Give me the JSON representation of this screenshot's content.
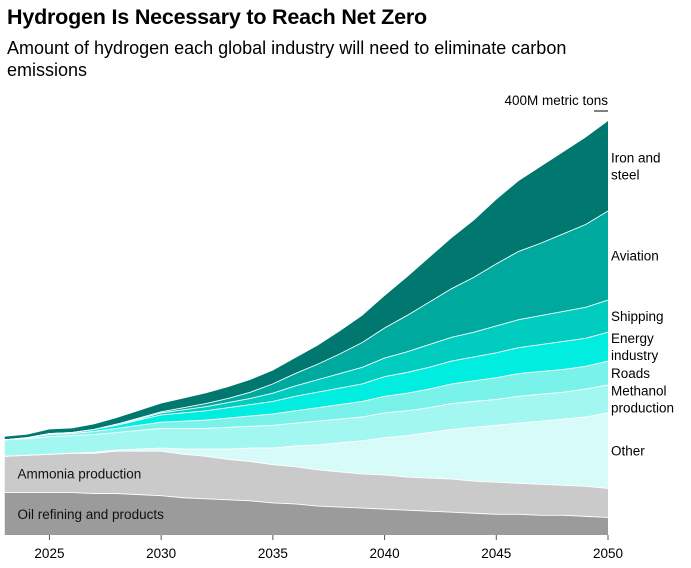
{
  "chart_data": {
    "type": "area",
    "stacked": true,
    "title": "Hydrogen Is Necessary to Reach Net Zero",
    "subtitle": "Amount of hydrogen each global industry will need to eliminate carbon emissions",
    "unit_label": "400M metric tons",
    "unit_value": 400,
    "x": [
      2023,
      2024,
      2025,
      2026,
      2027,
      2028,
      2029,
      2030,
      2031,
      2032,
      2033,
      2034,
      2035,
      2036,
      2037,
      2038,
      2039,
      2040,
      2041,
      2042,
      2043,
      2044,
      2045,
      2046,
      2047,
      2048,
      2049,
      2050
    ],
    "xlim": [
      2023.1,
      2050
    ],
    "ylim": [
      0,
      400
    ],
    "x_ticks": [
      "2025",
      "2030",
      "2035",
      "2040",
      "2045",
      "2050"
    ],
    "series": [
      {
        "name": "Oil refining and products",
        "color": "#9b9b9b",
        "values": [
          41,
          41,
          41,
          41,
          40,
          40,
          39,
          38,
          36,
          35,
          34,
          33,
          31,
          30,
          28,
          27,
          26,
          25,
          24,
          23,
          22,
          21,
          20,
          20,
          19,
          19,
          18,
          17
        ]
      },
      {
        "name": "Ammonia production",
        "color": "#cacaca",
        "values": [
          35,
          36,
          37,
          38,
          39,
          41,
          42,
          43,
          42,
          41,
          39,
          38,
          37,
          36,
          35,
          34,
          33,
          33,
          32,
          32,
          32,
          31,
          31,
          30,
          30,
          29,
          29,
          28
        ]
      },
      {
        "name": "Other",
        "color": "#d6fbf8",
        "values": [
          0,
          0,
          0,
          0,
          1,
          1,
          2,
          3,
          5,
          7,
          10,
          13,
          16,
          20,
          24,
          28,
          32,
          36,
          40,
          44,
          48,
          52,
          55,
          58,
          61,
          64,
          67,
          73
        ]
      },
      {
        "name": "Methanol production",
        "color": "#a3f7f1",
        "values": [
          16,
          16,
          17,
          17,
          17,
          17,
          18,
          19,
          20,
          20,
          21,
          21,
          22,
          22,
          23,
          23,
          23,
          24,
          24,
          24,
          25,
          25,
          25,
          26,
          26,
          26,
          27,
          27
        ]
      },
      {
        "name": "Roads",
        "color": "#79f2ea",
        "values": [
          0,
          1,
          2,
          2,
          3,
          4,
          5,
          6,
          7,
          8,
          9,
          10,
          11,
          12,
          13,
          14,
          15,
          16,
          17,
          18,
          19,
          20,
          21,
          22,
          22,
          22,
          22,
          23
        ]
      },
      {
        "name": "Energy industry",
        "color": "#00ede0",
        "values": [
          0,
          0,
          1,
          1,
          2,
          3,
          5,
          7,
          8,
          9,
          10,
          11,
          12,
          14,
          15,
          16,
          17,
          19,
          20,
          21,
          22,
          23,
          24,
          25,
          26,
          27,
          27,
          28
        ]
      },
      {
        "name": "Shipping",
        "color": "#00cdbf",
        "values": [
          0,
          0,
          0,
          0,
          0,
          1,
          1,
          2,
          3,
          4,
          5,
          6,
          8,
          10,
          12,
          14,
          16,
          18,
          20,
          22,
          23,
          24,
          26,
          27,
          28,
          29,
          30,
          31
        ]
      },
      {
        "name": "Aviation",
        "color": "#00a99d",
        "values": [
          0,
          0,
          0,
          0,
          0,
          0,
          1,
          1,
          2,
          3,
          4,
          6,
          9,
          12,
          15,
          19,
          24,
          29,
          35,
          41,
          47,
          53,
          60,
          66,
          70,
          75,
          80,
          86
        ]
      },
      {
        "name": "Iron and steel",
        "color": "#00786f",
        "values": [
          3,
          3,
          4,
          4,
          5,
          6,
          7,
          8,
          9,
          10,
          11,
          12,
          13,
          15,
          18,
          22,
          26,
          31,
          37,
          43,
          49,
          55,
          62,
          68,
          74,
          79,
          84,
          87
        ]
      }
    ],
    "series_labels": {
      "Iron and steel": [
        "Iron and",
        "steel"
      ],
      "Aviation": [
        "Aviation"
      ],
      "Shipping": [
        "Shipping"
      ],
      "Energy industry": [
        "Energy",
        "industry"
      ],
      "Roads": [
        "Roads"
      ],
      "Methanol production": [
        "Methanol",
        "production"
      ],
      "Other": [
        "Other"
      ],
      "Ammonia production": [
        "Ammonia production"
      ],
      "Oil refining and products": [
        "Oil refining and products"
      ]
    }
  }
}
